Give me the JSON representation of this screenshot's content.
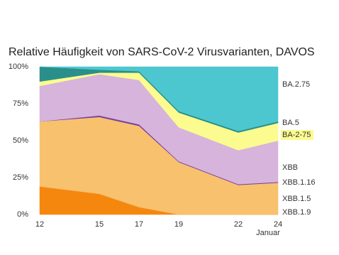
{
  "chart_data": {
    "type": "stacked-area",
    "title": "Relative Häufigkeit von SARS-CoV-2 Virusvarianten, DAVOS",
    "x_label": "Januar",
    "x": [
      12,
      15,
      17,
      19,
      22,
      24
    ],
    "xlim": [
      12,
      24
    ],
    "xticks": [
      12,
      15,
      17,
      19,
      22,
      24
    ],
    "ylim": [
      0,
      100
    ],
    "yticks": [
      {
        "value": 0,
        "label": "0%"
      },
      {
        "value": 25,
        "label": "25%"
      },
      {
        "value": 50,
        "label": "50%"
      },
      {
        "value": 75,
        "label": "75%"
      },
      {
        "value": 100,
        "label": "100%"
      }
    ],
    "series": [
      {
        "name": "XBB.1.9",
        "color": "#f5870f",
        "label_color": "#f08a12",
        "values": [
          19,
          14,
          5,
          0,
          0,
          0
        ]
      },
      {
        "name": "XBB.1.5",
        "color": "#f7c16e",
        "label_color": "#f5b55a",
        "values": [
          44,
          52,
          55,
          35.5,
          20,
          21.5
        ]
      },
      {
        "name": "XBB.1.16",
        "color": "#7a3fa0",
        "label_color": "#6a2f92",
        "values": [
          0,
          1,
          1,
          0.5,
          0.5,
          0.5
        ]
      },
      {
        "name": "XBB",
        "color": "#d6b4dc",
        "label_color": "#c9a4d1",
        "values": [
          24,
          28,
          30,
          23,
          23,
          28
        ]
      },
      {
        "name": "BA-2-75",
        "color": "#fbfb8f",
        "label_color": "#111111",
        "values": [
          3,
          1,
          5,
          10,
          12,
          12
        ]
      },
      {
        "name": "BA.5",
        "color": "#2a8f8a",
        "label_color": "#1e7a77",
        "values": [
          10,
          2,
          1,
          1,
          1,
          1
        ]
      },
      {
        "name": "BA.2.75",
        "color": "#4cc7cf",
        "label_color": "#3fb8c0",
        "values": [
          0,
          2,
          3,
          30,
          43.5,
          37
        ]
      }
    ]
  }
}
